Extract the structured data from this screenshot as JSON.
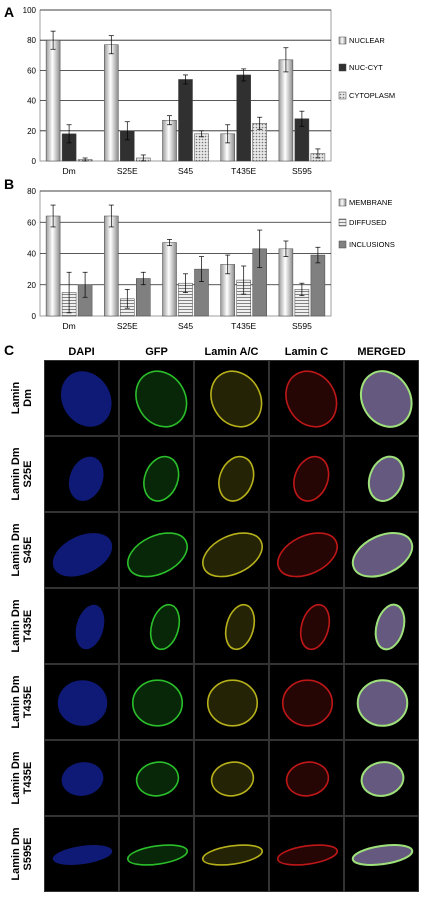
{
  "panel_letters": {
    "a": "A",
    "b": "B",
    "c": "C"
  },
  "chart_data": [
    {
      "type": "bar",
      "panel": "A",
      "categories": [
        "Dm",
        "S25E",
        "S45",
        "T435E",
        "S595"
      ],
      "series": [
        {
          "name": "NUCLEAR",
          "values": [
            80,
            77,
            27,
            18,
            67
          ],
          "errors": [
            6,
            6,
            3,
            6,
            8
          ],
          "color": "#e6e6e6",
          "pattern": "cylinder"
        },
        {
          "name": "NUC-CYT",
          "values": [
            18,
            20,
            54,
            57,
            28
          ],
          "errors": [
            6,
            6,
            3,
            4,
            5
          ],
          "color": "#303030",
          "pattern": "solid"
        },
        {
          "name": "CYTOPLASM",
          "values": [
            1,
            2,
            18,
            25,
            5
          ],
          "errors": [
            1,
            2,
            2,
            4,
            3
          ],
          "color": "#c8c8c8",
          "pattern": "dotted"
        }
      ],
      "ylim": [
        0,
        100
      ],
      "yticks": [
        0,
        20,
        40,
        60,
        80,
        100
      ],
      "grid": true,
      "legend_position": "right"
    },
    {
      "type": "bar",
      "panel": "B",
      "categories": [
        "Dm",
        "S25E",
        "S45",
        "T435E",
        "S595"
      ],
      "series": [
        {
          "name": "MEMBRANE",
          "values": [
            64,
            64,
            47,
            33,
            43
          ],
          "errors": [
            7,
            7,
            2,
            6,
            5
          ],
          "color": "#e6e6e6",
          "pattern": "cylinder"
        },
        {
          "name": "DIFFUSED",
          "values": [
            15,
            11,
            21,
            23,
            17
          ],
          "errors": [
            13,
            6,
            6,
            9,
            4
          ],
          "color": "#d0d0d0",
          "pattern": "hatched"
        },
        {
          "name": "INCLUSIONS",
          "values": [
            20,
            24,
            30,
            43,
            39
          ],
          "errors": [
            8,
            4,
            8,
            12,
            5
          ],
          "color": "#808080",
          "pattern": "solid"
        }
      ],
      "ylim": [
        0,
        80
      ],
      "yticks": [
        0,
        20,
        40,
        60,
        80
      ],
      "grid": true,
      "legend_position": "right"
    }
  ],
  "microscopy": {
    "columns": [
      "DAPI",
      "GFP",
      "Lamin A/C",
      "Lamin C",
      "MERGED"
    ],
    "rows": [
      {
        "label_top": "Lamin",
        "label_bottom": "Dm"
      },
      {
        "label_top": "Lamin Dm",
        "label_bottom": "S25E"
      },
      {
        "label_top": "Lamin Dm",
        "label_bottom": "S45E"
      },
      {
        "label_top": "Lamin Dm",
        "label_bottom": "T435E"
      },
      {
        "label_top": "Lamin Dm",
        "label_bottom": "T435E"
      },
      {
        "label_top": "Lamin Dm",
        "label_bottom": "T435E"
      },
      {
        "label_top": "Lamin Dm",
        "label_bottom": "S595E"
      }
    ],
    "channel_colors": {
      "DAPI": "#1a2fd6",
      "GFP": "#2fd12f",
      "Lamin A/C": "#c9c21e",
      "Lamin C": "#d11a1a",
      "MERGED": "#b9a3e8"
    }
  }
}
